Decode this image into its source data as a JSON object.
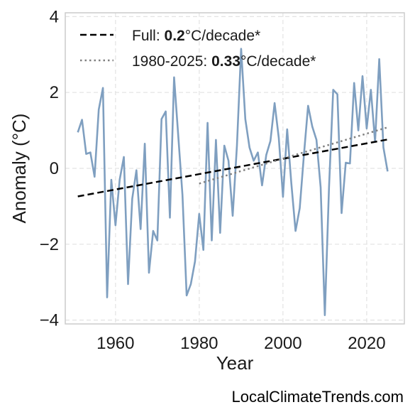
{
  "footer": {
    "site": "LocalClimateTrends.com"
  },
  "chart_data": {
    "type": "line",
    "xlabel": "Year",
    "ylabel": "Anomaly (°C)",
    "xlim": [
      1948,
      2029
    ],
    "ylim": [
      -4.1,
      4.1
    ],
    "x_ticks": [
      1960,
      1980,
      2000,
      2020
    ],
    "y_ticks": [
      -4,
      -2,
      0,
      2,
      4
    ],
    "y_tick_labels": [
      "−4",
      "−2",
      "0",
      "2",
      "4"
    ],
    "grid": true,
    "legend_position": "top-left",
    "series": [
      {
        "style": "solid",
        "color": "#7f9fc0",
        "x": [
          1951,
          1952,
          1953,
          1954,
          1955,
          1956,
          1957,
          1958,
          1959,
          1960,
          1961,
          1962,
          1963,
          1964,
          1965,
          1966,
          1967,
          1968,
          1969,
          1970,
          1971,
          1972,
          1973,
          1974,
          1975,
          1976,
          1977,
          1978,
          1979,
          1980,
          1981,
          1982,
          1983,
          1984,
          1985,
          1986,
          1987,
          1988,
          1989,
          1990,
          1991,
          1992,
          1993,
          1994,
          1995,
          1996,
          1997,
          1998,
          1999,
          2000,
          2001,
          2002,
          2003,
          2004,
          2005,
          2006,
          2007,
          2008,
          2009,
          2010,
          2011,
          2012,
          2013,
          2014,
          2015,
          2016,
          2017,
          2018,
          2019,
          2020,
          2021,
          2022,
          2023,
          2024,
          2025
        ],
        "values": [
          0.95,
          1.28,
          0.38,
          0.42,
          -0.22,
          1.55,
          2.12,
          -3.4,
          -0.3,
          -1.5,
          -0.3,
          0.3,
          -3.05,
          -0.8,
          -0.05,
          -1.6,
          0.65,
          -2.75,
          -1.65,
          -1.9,
          1.3,
          1.5,
          -1.3,
          2.4,
          0.85,
          -0.7,
          -3.35,
          -3.05,
          -2.45,
          -1.2,
          -2.15,
          1.2,
          -1.9,
          0.75,
          -1.7,
          0.6,
          0.2,
          -1.25,
          0.6,
          3.15,
          1.3,
          0.55,
          0.2,
          0.42,
          -0.45,
          0.35,
          0.72,
          1.72,
          0.8,
          -0.75,
          1.03,
          -0.4,
          -1.65,
          -1.05,
          0.35,
          1.65,
          1.1,
          0.75,
          -0.5,
          -3.87,
          -0.5,
          2.07,
          1.95,
          -1.18,
          0.15,
          0.13,
          2.25,
          1.0,
          2.43,
          1.05,
          2.07,
          0.7,
          2.88,
          0.55,
          -0.08
        ]
      },
      {
        "style": "dashed",
        "color": "#000000",
        "x": [
          1951,
          2025
        ],
        "values": [
          -0.74,
          0.76
        ],
        "legend_prefix": "Full: ",
        "legend_value": "0.2",
        "legend_suffix": "°C/decade*"
      },
      {
        "style": "dotted",
        "color": "#808080",
        "x": [
          1980,
          2025
        ],
        "values": [
          -0.4,
          1.08
        ],
        "legend_prefix": "1980-2025: ",
        "legend_value": "0.33",
        "legend_suffix": "°C/decade*"
      }
    ]
  }
}
